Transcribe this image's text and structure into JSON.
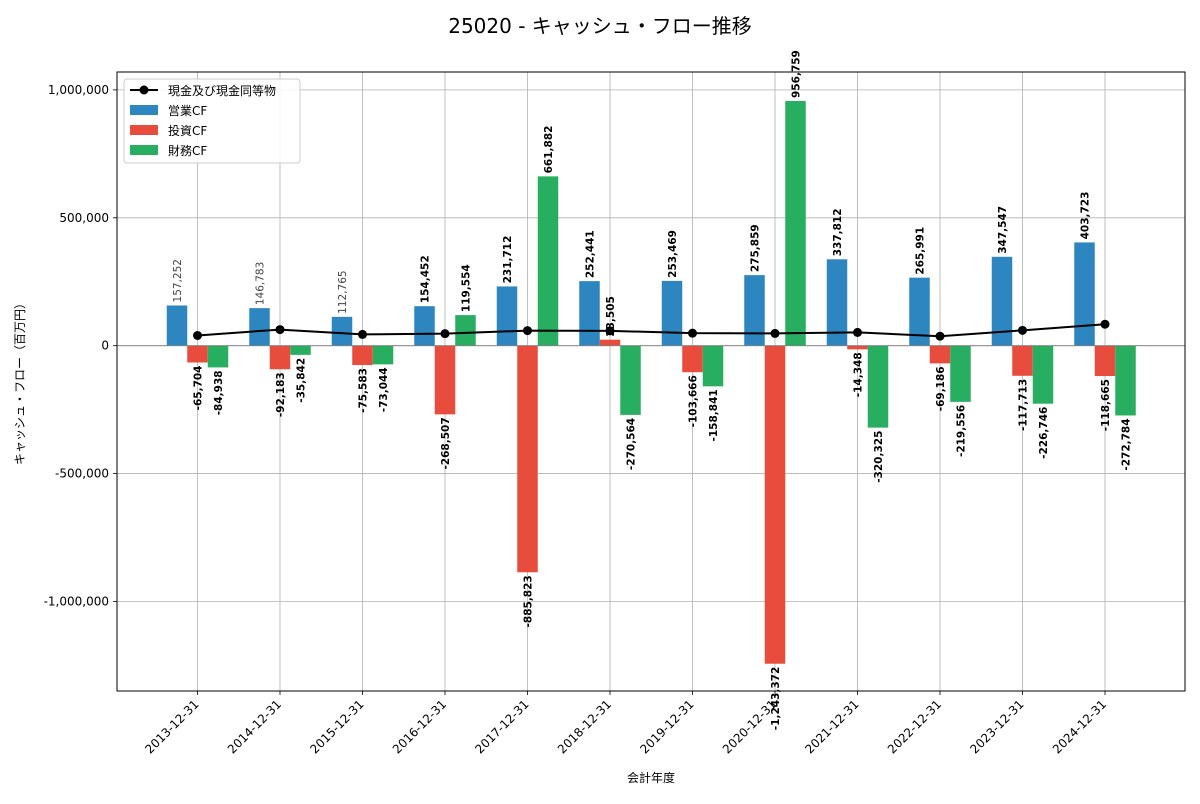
{
  "chart_data": {
    "type": "bar",
    "title": "25020 - キャッシュ・フロー推移",
    "xlabel": "会計年度",
    "ylabel": "キャッシュ・フロー（百万円）",
    "ylim": [
      -1350000,
      1070000
    ],
    "yticks": [
      1000000,
      500000,
      0,
      -500000,
      -1000000
    ],
    "ytick_labels": [
      "1,000,000",
      "500,000",
      "0",
      "-500,000",
      "-1,000,000"
    ],
    "grid": true,
    "legend_position": "top-left",
    "categories": [
      "2013-12-31",
      "2014-12-31",
      "2015-12-31",
      "2016-12-31",
      "2017-12-31",
      "2018-12-31",
      "2019-12-31",
      "2020-12-31",
      "2021-12-31",
      "2022-12-31",
      "2023-12-31",
      "2024-12-31"
    ],
    "series": [
      {
        "name": "営業CF",
        "color": "#2e86c1",
        "values": [
          157252,
          146783,
          112765,
          154452,
          231712,
          252441,
          253469,
          275859,
          337812,
          265991,
          347547,
          403723
        ],
        "labels": [
          "157,252",
          "146,783",
          "112,765",
          "154,452",
          "231,712",
          "252,441",
          "253,469",
          "275,859",
          "337,812",
          "265,991",
          "347,547",
          "403,723"
        ]
      },
      {
        "name": "投資CF",
        "color": "#e74c3c",
        "values": [
          -65704,
          -92183,
          -75583,
          -268507,
          -885823,
          23505,
          -103666,
          -1243372,
          -14348,
          -69186,
          -117713,
          -118665
        ],
        "labels": [
          "-65,704",
          "-92,183",
          "-75,583",
          "-268,507",
          "-885,823",
          "23,505",
          "-103,666",
          "-1,243,372",
          "-14,348",
          "-69,186",
          "-117,713",
          "-118,665"
        ]
      },
      {
        "name": "財務CF",
        "color": "#27ae60",
        "values": [
          -84938,
          -35842,
          -73044,
          119554,
          661882,
          -270564,
          -158841,
          956759,
          -320325,
          -219556,
          -226746,
          -272784
        ],
        "labels": [
          "-84,938",
          "-35,842",
          "-73,044",
          "119,554",
          "661,882",
          "-270,564",
          "-158,841",
          "956,759",
          "-320,325",
          "-219,556",
          "-226,746",
          "-272,784"
        ]
      }
    ],
    "line_series": {
      "name": "現金及び現金同等物",
      "color": "#000000",
      "values": [
        40000,
        63000,
        44000,
        47000,
        59000,
        58000,
        49000,
        48000,
        52000,
        37000,
        60000,
        84000
      ]
    }
  }
}
